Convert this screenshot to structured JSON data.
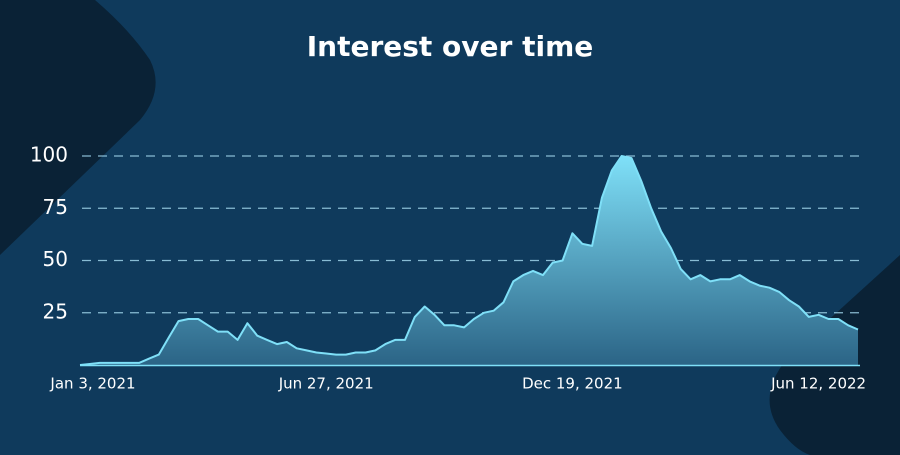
{
  "chart_data": {
    "type": "area",
    "title": "Interest over time",
    "categories": [
      "Jan 3, 2021",
      null,
      null,
      null,
      null,
      null,
      null,
      null,
      null,
      null,
      null,
      null,
      null,
      null,
      null,
      null,
      null,
      null,
      null,
      null,
      null,
      null,
      null,
      null,
      null,
      "Jun 27, 2021",
      null,
      null,
      null,
      null,
      null,
      null,
      null,
      null,
      null,
      null,
      null,
      null,
      null,
      null,
      null,
      null,
      null,
      null,
      null,
      null,
      null,
      null,
      null,
      null,
      "Dec 19, 2021",
      null,
      null,
      null,
      null,
      null,
      null,
      null,
      null,
      null,
      null,
      null,
      null,
      null,
      null,
      null,
      null,
      null,
      null,
      null,
      null,
      null,
      null,
      null,
      null,
      "Jun 12, 2022",
      null,
      null,
      null,
      null
    ],
    "values": [
      0,
      0.5,
      1,
      1,
      1,
      1,
      1,
      3,
      5,
      13,
      21,
      22,
      22,
      19,
      16,
      16,
      12,
      20,
      14,
      12,
      10,
      11,
      8,
      7,
      6,
      5.5,
      5,
      5,
      6,
      6,
      7,
      10,
      12,
      12,
      23,
      28,
      24,
      19,
      19,
      18,
      22,
      25,
      26,
      30,
      40,
      43,
      45,
      43,
      49,
      50,
      63,
      58,
      57,
      80,
      93,
      100,
      99,
      88,
      75,
      64,
      56,
      46,
      41,
      43,
      40,
      41,
      41,
      43,
      40,
      38,
      37,
      35,
      31,
      28,
      23,
      24,
      22,
      22,
      19,
      17
    ],
    "color": "#7fe0f8",
    "ylim": [
      0,
      100
    ],
    "yticks": [
      25,
      50,
      75,
      100
    ],
    "grid": true
  }
}
